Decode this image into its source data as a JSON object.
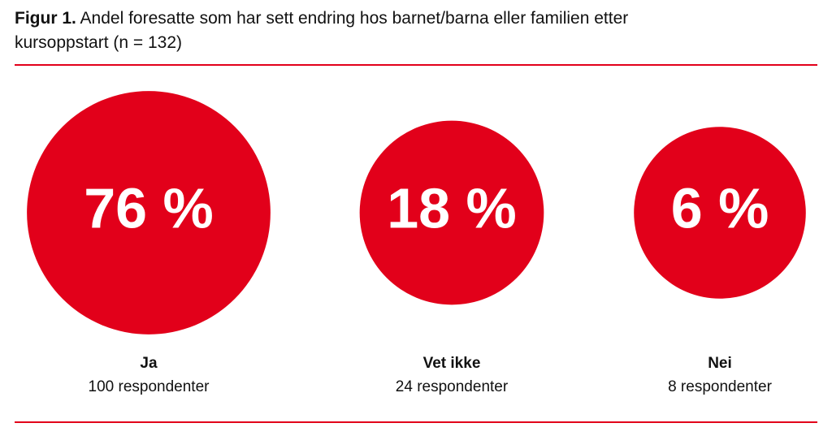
{
  "chart_data": {
    "type": "circles",
    "title_label": "Figur 1.",
    "title": "Andel foresatte som har sett endring hos barnet/barna eller familien etter kursoppstart (n = 132)",
    "categories": [
      "Ja",
      "Vet ikke",
      "Nei"
    ],
    "values": [
      76,
      18,
      6
    ],
    "value_labels": [
      "76 %",
      "18 %",
      "6 %"
    ],
    "respondents": [
      "100 respondenter",
      "24 respondenter",
      "8 respondenter"
    ],
    "color": "#e2001a"
  }
}
